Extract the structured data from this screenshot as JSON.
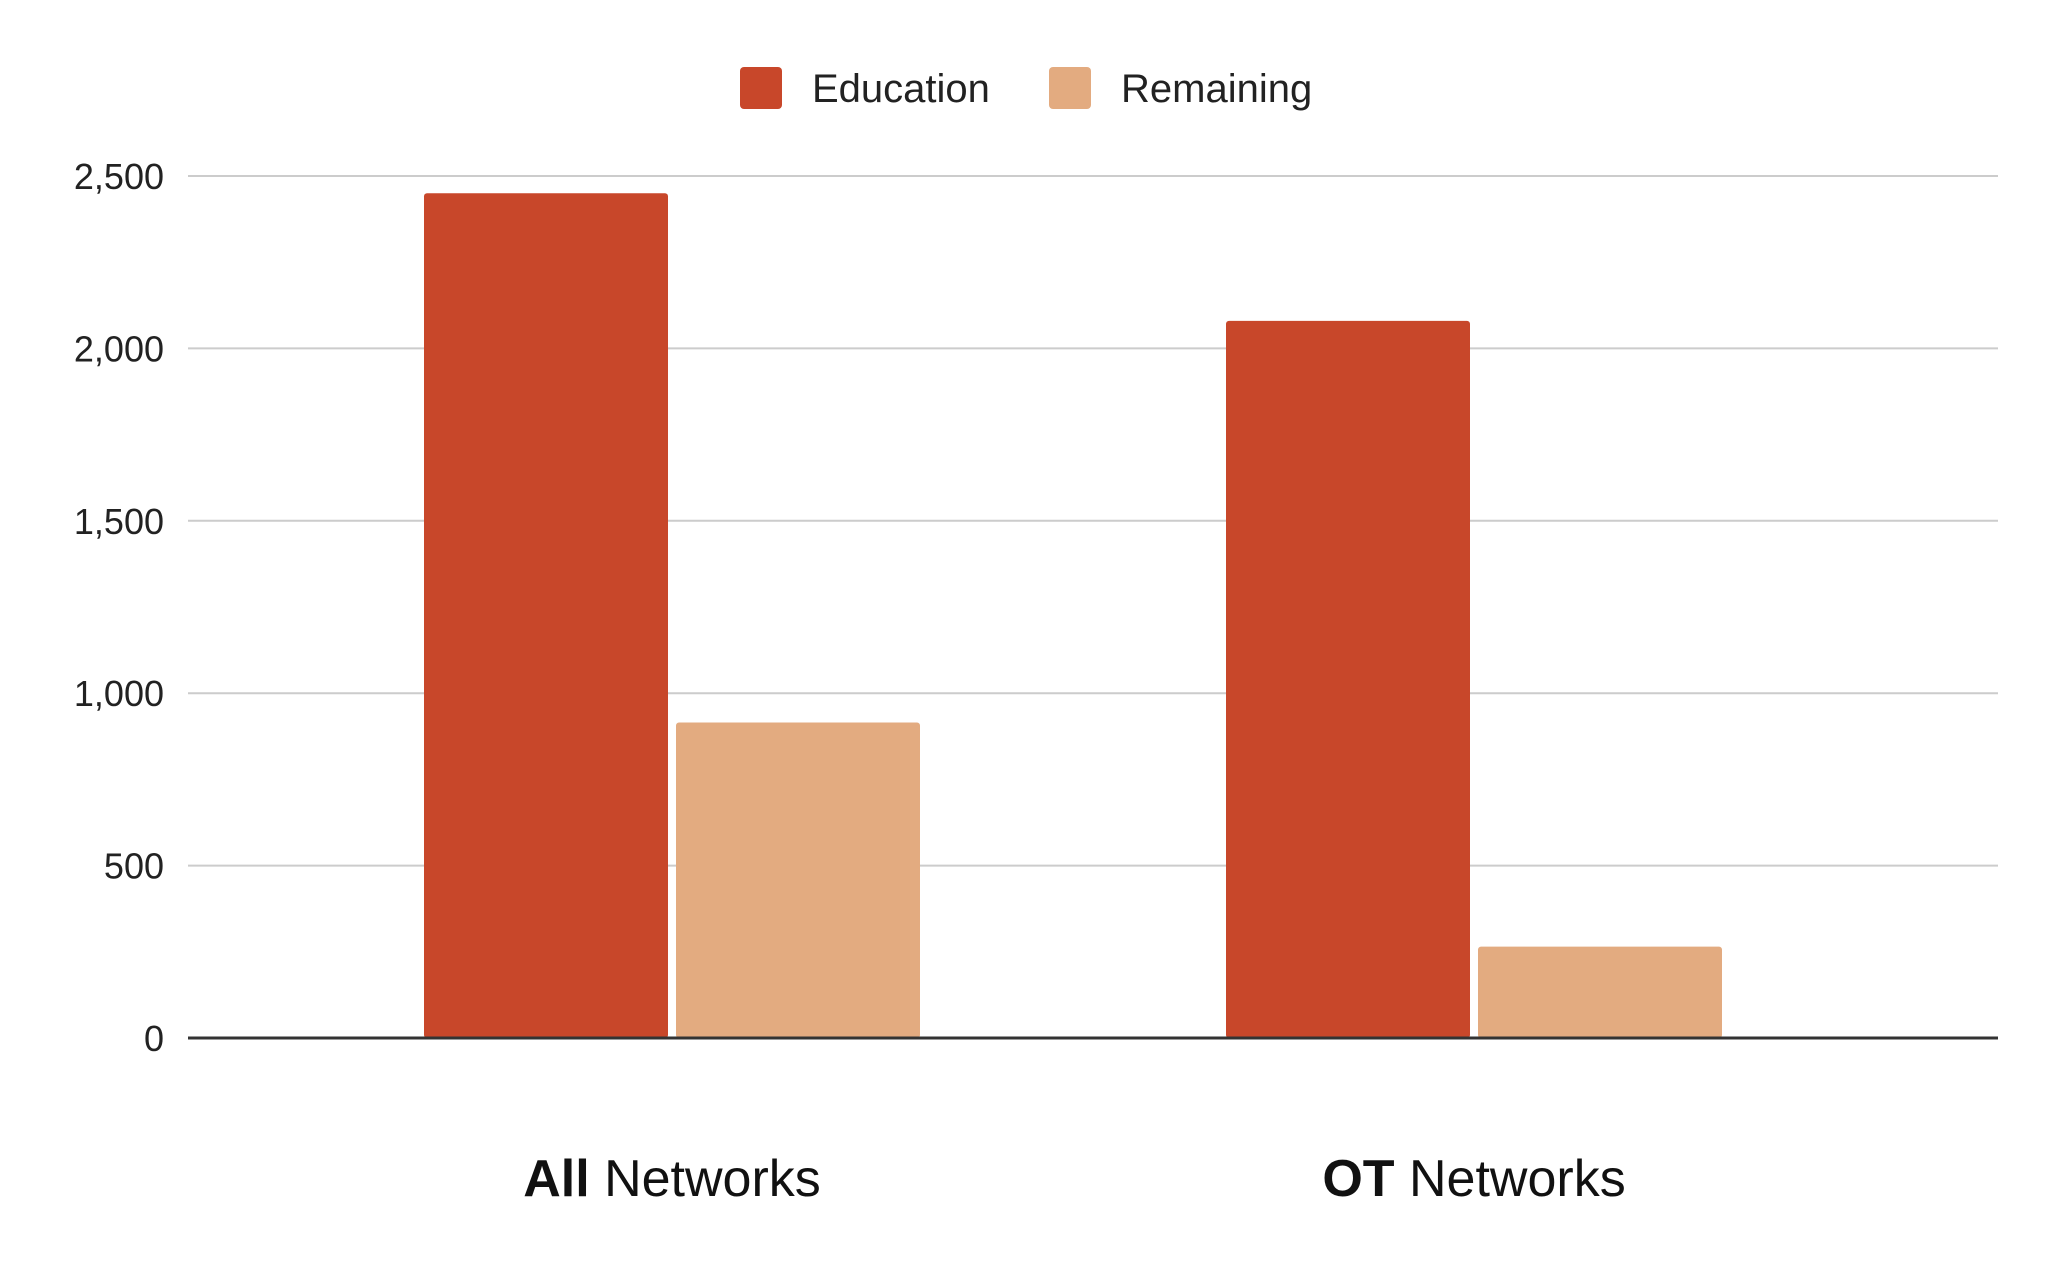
{
  "chart_data": {
    "type": "bar",
    "categories": [
      "All Networks",
      "OT Networks"
    ],
    "category_labels": [
      {
        "bold": "All",
        "rest": " Networks"
      },
      {
        "bold": "OT",
        "rest": " Networks"
      }
    ],
    "series": [
      {
        "name": "Education",
        "values": [
          2450,
          2080
        ],
        "color": "#c8472a"
      },
      {
        "name": "Remaining",
        "values": [
          915,
          265
        ],
        "color": "#e3ab80"
      }
    ],
    "ylim": [
      0,
      2500
    ],
    "yticks": [
      0,
      500,
      1000,
      1500,
      2000,
      2500
    ],
    "ytick_labels": [
      "0",
      "500",
      "1,000",
      "1,500",
      "2,000",
      "2,500"
    ],
    "grid": true,
    "legend_position": "top-center",
    "title": "",
    "xlabel": "",
    "ylabel": ""
  }
}
